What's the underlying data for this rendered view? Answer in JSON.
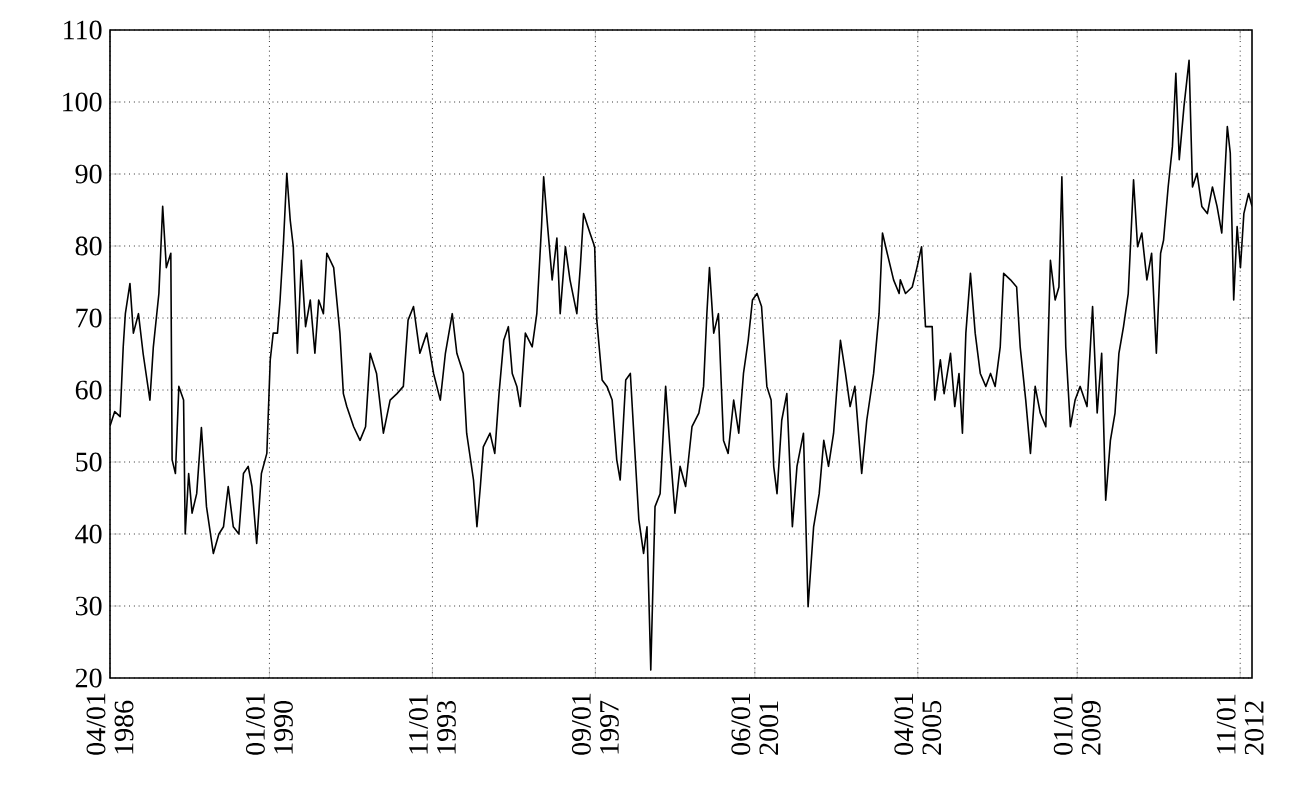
{
  "chart_data": {
    "type": "line",
    "color": "#000000",
    "grid": true,
    "xlim": [
      "1986-04-01",
      "2013-02-11"
    ],
    "ylim": [
      20,
      110
    ],
    "xticks": [
      {
        "value": "1986-04-01",
        "label": "04/01 1986"
      },
      {
        "value": "1990-01-01",
        "label": "01/01 1990"
      },
      {
        "value": "1993-11-01",
        "label": "11/01 1993"
      },
      {
        "value": "1997-09-01",
        "label": "09/01 1997"
      },
      {
        "value": "2001-06-01",
        "label": "06/01 2001"
      },
      {
        "value": "2005-04-01",
        "label": "04/01 2005"
      },
      {
        "value": "2009-01-01",
        "label": "01/01 2009"
      },
      {
        "value": "2012-11-01",
        "label": "11/01 2012"
      }
    ],
    "yticks": [
      20,
      30,
      40,
      50,
      60,
      70,
      80,
      90,
      100,
      110
    ],
    "x": [
      "1986-04-01",
      "1986-05-11",
      "1986-06-27",
      "1986-07-23",
      "1986-08-11",
      "1986-09-20",
      "1986-10-19",
      "1986-12-02",
      "1987-01-12",
      "1987-03-09",
      "1987-04-08",
      "1987-05-25",
      "1987-06-27",
      "1987-07-28",
      "1987-09-06",
      "1987-09-17",
      "1987-10-15",
      "1987-11-14",
      "1987-12-24",
      "1988-01-08",
      "1988-02-07",
      "1988-03-06",
      "1988-04-15",
      "1988-05-25",
      "1988-07-08",
      "1988-09-06",
      "1988-10-23",
      "1988-12-02",
      "1989-01-12",
      "1989-02-25",
      "1989-04-12",
      "1989-05-21",
      "1989-07-01",
      "1989-08-03",
      "1989-09-13",
      "1989-10-23",
      "1989-12-09",
      "1990-01-08",
      "1990-02-03",
      "1990-03-09",
      "1990-04-01",
      "1990-04-28",
      "1990-05-28",
      "1990-06-27",
      "1990-07-23",
      "1990-08-28",
      "1990-10-01",
      "1990-11-07",
      "1990-12-17",
      "1991-01-26",
      "1991-02-28",
      "1991-04-08",
      "1991-05-07",
      "1991-07-05",
      "1991-08-28",
      "1991-09-27",
      "1991-10-26",
      "1991-12-24",
      "1992-02-18",
      "1992-04-05",
      "1992-05-14",
      "1992-07-08",
      "1992-09-06",
      "1992-11-03",
      "1993-01-01",
      "1993-02-25",
      "1993-04-05",
      "1993-05-21",
      "1993-07-15",
      "1993-09-13",
      "1993-11-11",
      "1994-01-08",
      "1994-02-21",
      "1994-04-19",
      "1994-05-28",
      "1994-07-23",
      "1994-08-21",
      "1994-10-19",
      "1994-11-18",
      "1994-12-17",
      "1995-01-12",
      "1995-03-09",
      "1995-04-19",
      "1995-05-25",
      "1995-07-05",
      "1995-08-14",
      "1995-09-17",
      "1995-10-26",
      "1995-11-25",
      "1996-01-08",
      "1996-03-06",
      "1996-04-15",
      "1996-05-25",
      "1996-06-13",
      "1996-07-12",
      "1996-08-25",
      "1996-10-05",
      "1996-11-03",
      "1996-12-17",
      "1997-01-26",
      "1997-03-24",
      "1997-04-23",
      "1997-05-21",
      "1997-07-15",
      "1997-08-25",
      "1997-09-13",
      "1997-10-28",
      "1997-12-09",
      "1998-01-23",
      "1998-03-02",
      "1998-04-01",
      "1998-05-18",
      "1998-06-27",
      "1998-07-23",
      "1998-09-09",
      "1998-10-19",
      "1998-11-18",
      "1998-12-20",
      "1999-01-26",
      "1999-03-09",
      "1999-04-26",
      "1999-06-06",
      "1999-07-15",
      "1999-08-28",
      "1999-10-15",
      "1999-12-09",
      "2000-02-07",
      "2000-03-17",
      "2000-04-15",
      "2000-05-07",
      "2000-06-13",
      "2000-07-23",
      "2000-09-06",
      "2000-10-15",
      "2000-12-02",
      "2001-01-15",
      "2001-02-25",
      "2001-04-05",
      "2001-05-11",
      "2001-06-20",
      "2001-07-28",
      "2001-09-13",
      "2001-10-19",
      "2001-11-11",
      "2001-12-09",
      "2002-01-19",
      "2002-03-02",
      "2002-04-19",
      "2002-05-28",
      "2002-07-23",
      "2002-09-02",
      "2002-10-19",
      "2002-12-06",
      "2003-01-15",
      "2003-02-25",
      "2003-04-08",
      "2003-06-06",
      "2003-07-19",
      "2003-08-28",
      "2003-10-08",
      "2003-12-06",
      "2004-01-19",
      "2004-03-17",
      "2004-05-03",
      "2004-06-02",
      "2004-07-12",
      "2004-09-06",
      "2004-10-23",
      "2004-11-03",
      "2004-12-17",
      "2005-02-14",
      "2005-03-24",
      "2005-05-03",
      "2005-06-06",
      "2005-08-03",
      "2005-08-25",
      "2005-10-12",
      "2005-11-14",
      "2006-01-08",
      "2006-02-14",
      "2006-03-20",
      "2006-04-19",
      "2006-05-18",
      "2006-06-27",
      "2006-08-07",
      "2006-09-20",
      "2006-11-07",
      "2006-12-17",
      "2007-01-26",
      "2007-03-09",
      "2007-04-08",
      "2007-06-06",
      "2007-07-28",
      "2007-08-28",
      "2007-10-15",
      "2007-11-25",
      "2008-01-05",
      "2008-02-18",
      "2008-04-05",
      "2008-05-14",
      "2008-06-24",
      "2008-07-26",
      "2008-08-21",
      "2008-09-24",
      "2008-11-03",
      "2008-12-13",
      "2009-01-26",
      "2009-03-24",
      "2009-05-11",
      "2009-06-20",
      "2009-07-28",
      "2009-09-02",
      "2009-10-12",
      "2009-11-21",
      "2009-12-24",
      "2010-02-03",
      "2010-03-13",
      "2010-04-28",
      "2010-06-02",
      "2010-07-08",
      "2010-08-21",
      "2010-10-01",
      "2010-11-11",
      "2010-12-17",
      "2011-01-12",
      "2011-02-21",
      "2011-03-27",
      "2011-04-26",
      "2011-05-25",
      "2011-07-05",
      "2011-08-18",
      "2011-09-17",
      "2011-10-26",
      "2011-12-06",
      "2012-01-23",
      "2012-03-06",
      "2012-04-15",
      "2012-05-25",
      "2012-07-12",
      "2012-08-07",
      "2012-09-06",
      "2012-10-05",
      "2012-11-03",
      "2012-12-02",
      "2013-01-12",
      "2013-02-11"
    ],
    "values": [
      55,
      57,
      56.3,
      66,
      70.6,
      74.8,
      67.9,
      70.6,
      65,
      58.6,
      66,
      73.4,
      85.5,
      77,
      79,
      50.3,
      48.4,
      60.5,
      58.6,
      40,
      48.4,
      42.9,
      45.6,
      54.8,
      43.8,
      37.3,
      40,
      41,
      46.6,
      41,
      40,
      48.4,
      49.4,
      46.6,
      38.7,
      48.4,
      51.2,
      64.2,
      67.9,
      67.9,
      72.5,
      79.9,
      90.1,
      83.6,
      79.9,
      65.1,
      78,
      68.8,
      72.5,
      65.1,
      72.5,
      70.6,
      79,
      77,
      67.9,
      59.5,
      57.7,
      54.9,
      53,
      54.9,
      65.1,
      62.3,
      54,
      58.6,
      59.5,
      60.5,
      69.7,
      71.6,
      65.1,
      67.9,
      62.3,
      58.6,
      65.1,
      70.6,
      65.1,
      62.3,
      54,
      47.5,
      41,
      46.6,
      52.1,
      54,
      51.2,
      59.5,
      66.9,
      68.8,
      62.3,
      60.5,
      57.7,
      67.9,
      66,
      70.6,
      82.7,
      89.6,
      83.6,
      75.3,
      81.1,
      70.6,
      79.9,
      75.3,
      70.6,
      77,
      84.5,
      81.8,
      79.9,
      69.7,
      61.4,
      60.5,
      58.6,
      50.3,
      47.5,
      61.4,
      62.3,
      54.9,
      42,
      37.3,
      41,
      21.1,
      43.8,
      45.6,
      60.5,
      51.2,
      42.9,
      49.4,
      46.6,
      54.9,
      56.8,
      60.5,
      70.6,
      77,
      67.9,
      70.6,
      53,
      51.2,
      58.6,
      54,
      62.3,
      66.9,
      72.5,
      73.4,
      71.6,
      60.5,
      58.6,
      49.4,
      45.6,
      55.8,
      59.5,
      41,
      49.4,
      54,
      29.9,
      41,
      45.6,
      53,
      49.4,
      54,
      66.9,
      62.3,
      57.7,
      60.5,
      48.4,
      55.8,
      62.3,
      70.6,
      81.8,
      79,
      75.3,
      73.4,
      75.3,
      73.4,
      74.3,
      77,
      79.9,
      68.8,
      68.8,
      58.6,
      64.2,
      59.5,
      65.1,
      57.7,
      62.3,
      54,
      67.9,
      76.2,
      67.9,
      62.3,
      60.5,
      62.3,
      60.5,
      66,
      76.2,
      75.3,
      74.3,
      66,
      58.6,
      51.2,
      60.5,
      56.8,
      54.9,
      78,
      72.5,
      74.3,
      89.6,
      66,
      54.9,
      58.6,
      60.5,
      57.7,
      71.6,
      56.8,
      65.1,
      44.7,
      53,
      56.8,
      65.1,
      68.8,
      73.4,
      89.2,
      79.9,
      81.8,
      75.3,
      79,
      65.1,
      79,
      80.8,
      88.2,
      93.8,
      104,
      92,
      99.4,
      105.8,
      88.2,
      90.1,
      85.5,
      84.5,
      88.2,
      85.5,
      81.8,
      96.6,
      92.9,
      72.5,
      82.7,
      77,
      84.5,
      87.3,
      85.5
    ]
  }
}
